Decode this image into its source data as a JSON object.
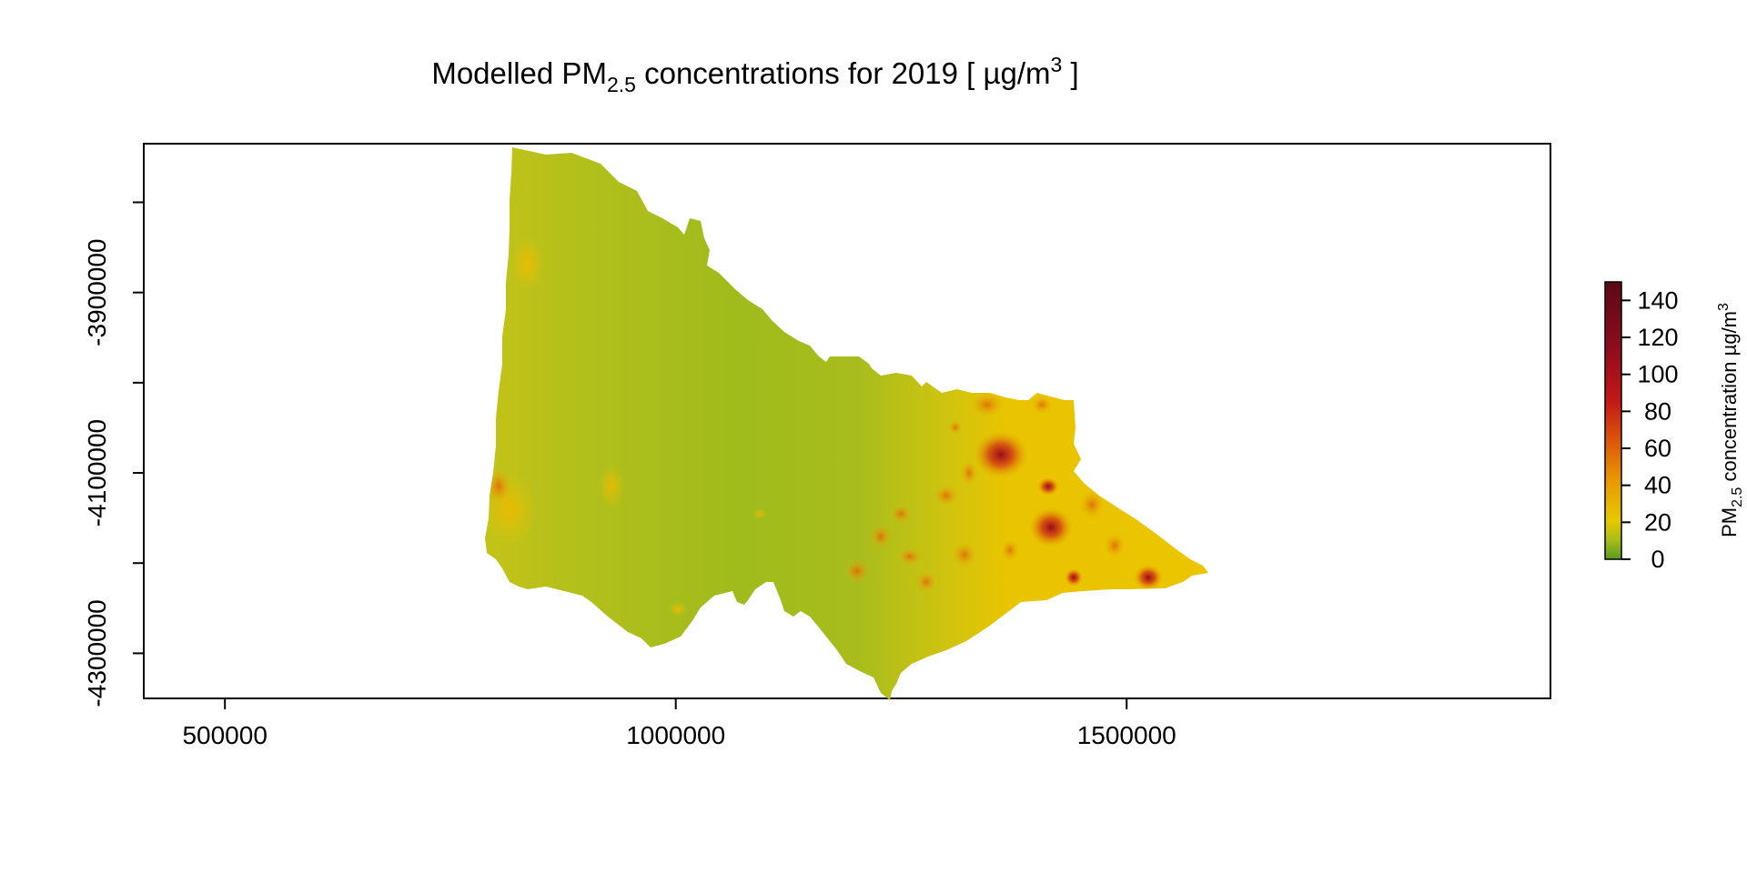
{
  "title": {
    "prefix": "Modelled PM",
    "subscript": "2.5",
    "middle": " concentrations for 2019 [ µg/m",
    "superscript": "3",
    "suffix": " ]"
  },
  "x_axis": {
    "range": [
      410000,
      1970000
    ],
    "ticks": [
      {
        "value": 500000,
        "label": "500000"
      },
      {
        "value": 1000000,
        "label": "1000000"
      },
      {
        "value": 1500000,
        "label": "1500000"
      }
    ]
  },
  "y_axis": {
    "range": [
      -4350000,
      -3735000
    ],
    "ticks": [
      {
        "value": -3800000,
        "label": ""
      },
      {
        "value": -3900000,
        "label": "-3900000"
      },
      {
        "value": -4000000,
        "label": ""
      },
      {
        "value": -4100000,
        "label": "-4100000"
      },
      {
        "value": -4200000,
        "label": ""
      },
      {
        "value": -4300000,
        "label": "-4300000"
      }
    ]
  },
  "legend": {
    "range": [
      0,
      150
    ],
    "ticks": [
      {
        "value": 0,
        "label": "0"
      },
      {
        "value": 20,
        "label": "20"
      },
      {
        "value": 40,
        "label": "40"
      },
      {
        "value": 60,
        "label": "60"
      },
      {
        "value": 80,
        "label": "80"
      },
      {
        "value": 100,
        "label": "100"
      },
      {
        "value": 120,
        "label": "120"
      },
      {
        "value": 140,
        "label": "140"
      }
    ],
    "label_prefix": "PM",
    "label_subscript": "2.5",
    "label_middle": " concentration µg/m",
    "label_superscript": "3",
    "colors": [
      "#5a9a1e",
      "#9cbb1a",
      "#c8c410",
      "#e8c800",
      "#e89a00",
      "#dd5a0a",
      "#c41818",
      "#8a0b1e",
      "#5a0a16"
    ]
  },
  "map": {
    "base_color": "#a7bd1f",
    "west_color": "#c0c216",
    "east_color": "#e8c600",
    "hotspot_color": "#b50e1e"
  }
}
